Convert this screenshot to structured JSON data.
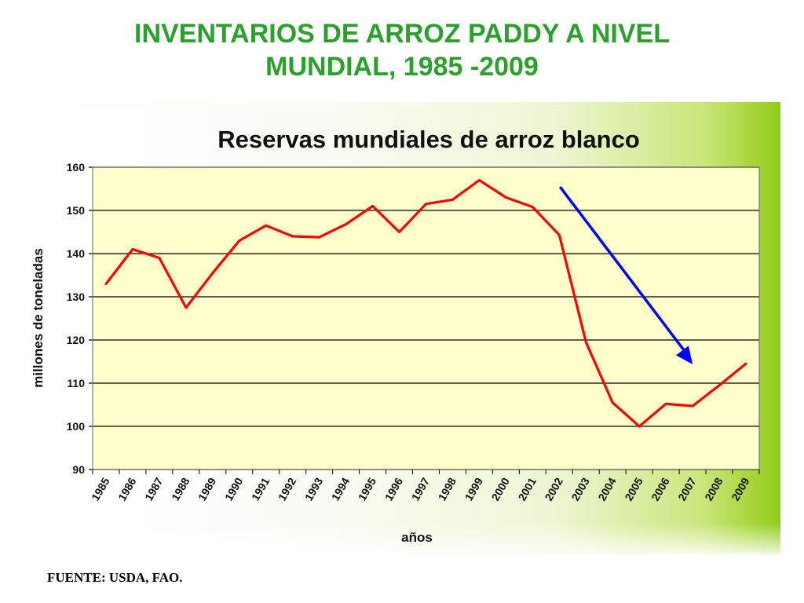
{
  "slide": {
    "title_line1": "INVENTARIOS DE ARROZ PADDY A NIVEL",
    "title_line2": "MUNDIAL, 1985 -2009",
    "source": "FUENTE: USDA, FAO."
  },
  "colors": {
    "title": "#2ca02c",
    "line": "#ff0000",
    "arrow": "#0000ff",
    "plot_bg": "#ffffcc"
  },
  "chart_data": {
    "type": "line",
    "title": "Reservas mundiales de arroz blanco",
    "xlabel": "años",
    "ylabel": "millones de toneladas",
    "ylim": [
      90,
      160
    ],
    "yticks": [
      90,
      100,
      110,
      120,
      130,
      140,
      150,
      160
    ],
    "grid": true,
    "categories": [
      "1985",
      "1986",
      "1987",
      "1988",
      "1989",
      "1990",
      "1991",
      "1992",
      "1993",
      "1994",
      "1995",
      "1996",
      "1997",
      "1998",
      "1999",
      "2000",
      "2001",
      "2002",
      "2003",
      "2004",
      "2005",
      "2006",
      "2007",
      "2008",
      "2009"
    ],
    "series": [
      {
        "values": [
          133,
          141,
          139,
          127.5,
          135.5,
          143,
          146.5,
          144,
          143.8,
          146.8,
          151,
          145,
          151.5,
          152.5,
          157,
          153,
          150.8,
          144.3,
          119.5,
          105.5,
          100,
          105.2,
          104.7,
          109.5,
          114.5
        ]
      }
    ],
    "annotations": [
      {
        "type": "arrow",
        "color": "#0000ff",
        "direction": "down-right",
        "from_category": "2002",
        "to_category": "2007"
      }
    ]
  }
}
